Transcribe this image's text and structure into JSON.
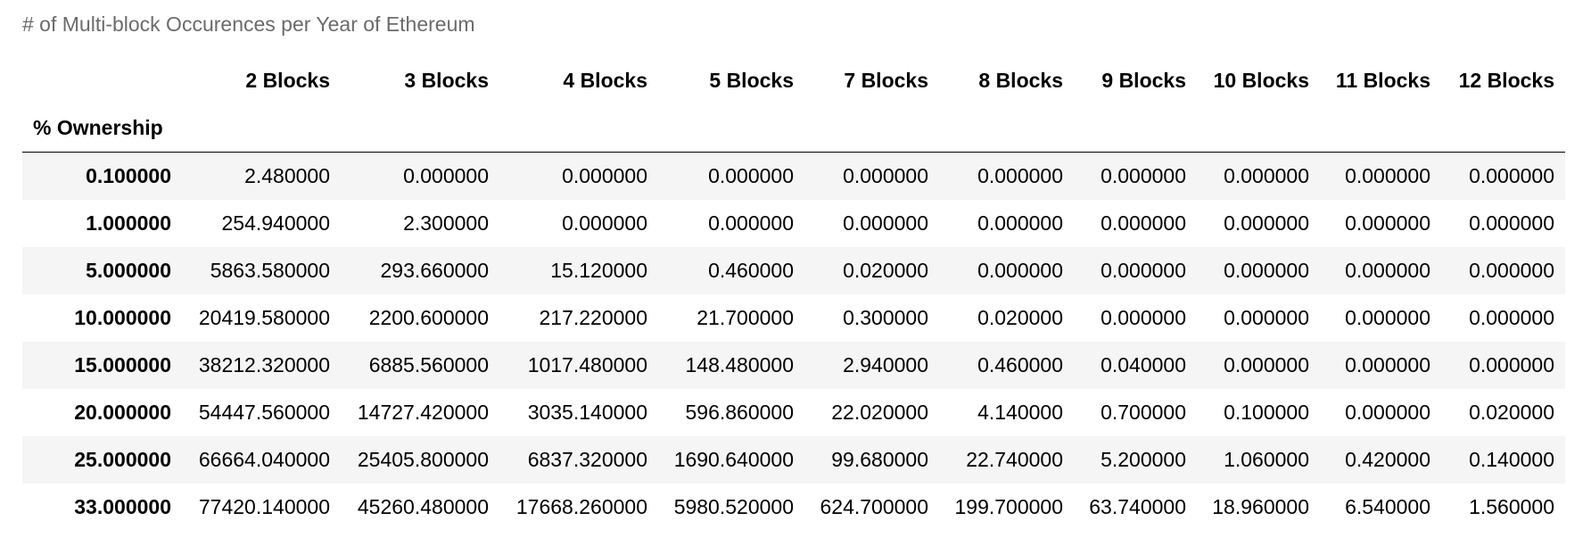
{
  "caption": "# of Multi-block Occurences per Year of Ethereum",
  "table": {
    "index_name": "% Ownership",
    "columns": [
      "2 Blocks",
      "3 Blocks",
      "4 Blocks",
      "5 Blocks",
      "7 Blocks",
      "8 Blocks",
      "9 Blocks",
      "10 Blocks",
      "11 Blocks",
      "12 Blocks"
    ],
    "rows": [
      {
        "index": "0.100000",
        "values": [
          "2.480000",
          "0.000000",
          "0.000000",
          "0.000000",
          "0.000000",
          "0.000000",
          "0.000000",
          "0.000000",
          "0.000000",
          "0.000000"
        ]
      },
      {
        "index": "1.000000",
        "values": [
          "254.940000",
          "2.300000",
          "0.000000",
          "0.000000",
          "0.000000",
          "0.000000",
          "0.000000",
          "0.000000",
          "0.000000",
          "0.000000"
        ]
      },
      {
        "index": "5.000000",
        "values": [
          "5863.580000",
          "293.660000",
          "15.120000",
          "0.460000",
          "0.020000",
          "0.000000",
          "0.000000",
          "0.000000",
          "0.000000",
          "0.000000"
        ]
      },
      {
        "index": "10.000000",
        "values": [
          "20419.580000",
          "2200.600000",
          "217.220000",
          "21.700000",
          "0.300000",
          "0.020000",
          "0.000000",
          "0.000000",
          "0.000000",
          "0.000000"
        ]
      },
      {
        "index": "15.000000",
        "values": [
          "38212.320000",
          "6885.560000",
          "1017.480000",
          "148.480000",
          "2.940000",
          "0.460000",
          "0.040000",
          "0.000000",
          "0.000000",
          "0.000000"
        ]
      },
      {
        "index": "20.000000",
        "values": [
          "54447.560000",
          "14727.420000",
          "3035.140000",
          "596.860000",
          "22.020000",
          "4.140000",
          "0.700000",
          "0.100000",
          "0.000000",
          "0.020000"
        ]
      },
      {
        "index": "25.000000",
        "values": [
          "66664.040000",
          "25405.800000",
          "6837.320000",
          "1690.640000",
          "99.680000",
          "22.740000",
          "5.200000",
          "1.060000",
          "0.420000",
          "0.140000"
        ]
      },
      {
        "index": "33.000000",
        "values": [
          "77420.140000",
          "45260.480000",
          "17668.260000",
          "5980.520000",
          "624.700000",
          "199.700000",
          "63.740000",
          "18.960000",
          "6.540000",
          "1.560000"
        ]
      }
    ]
  }
}
